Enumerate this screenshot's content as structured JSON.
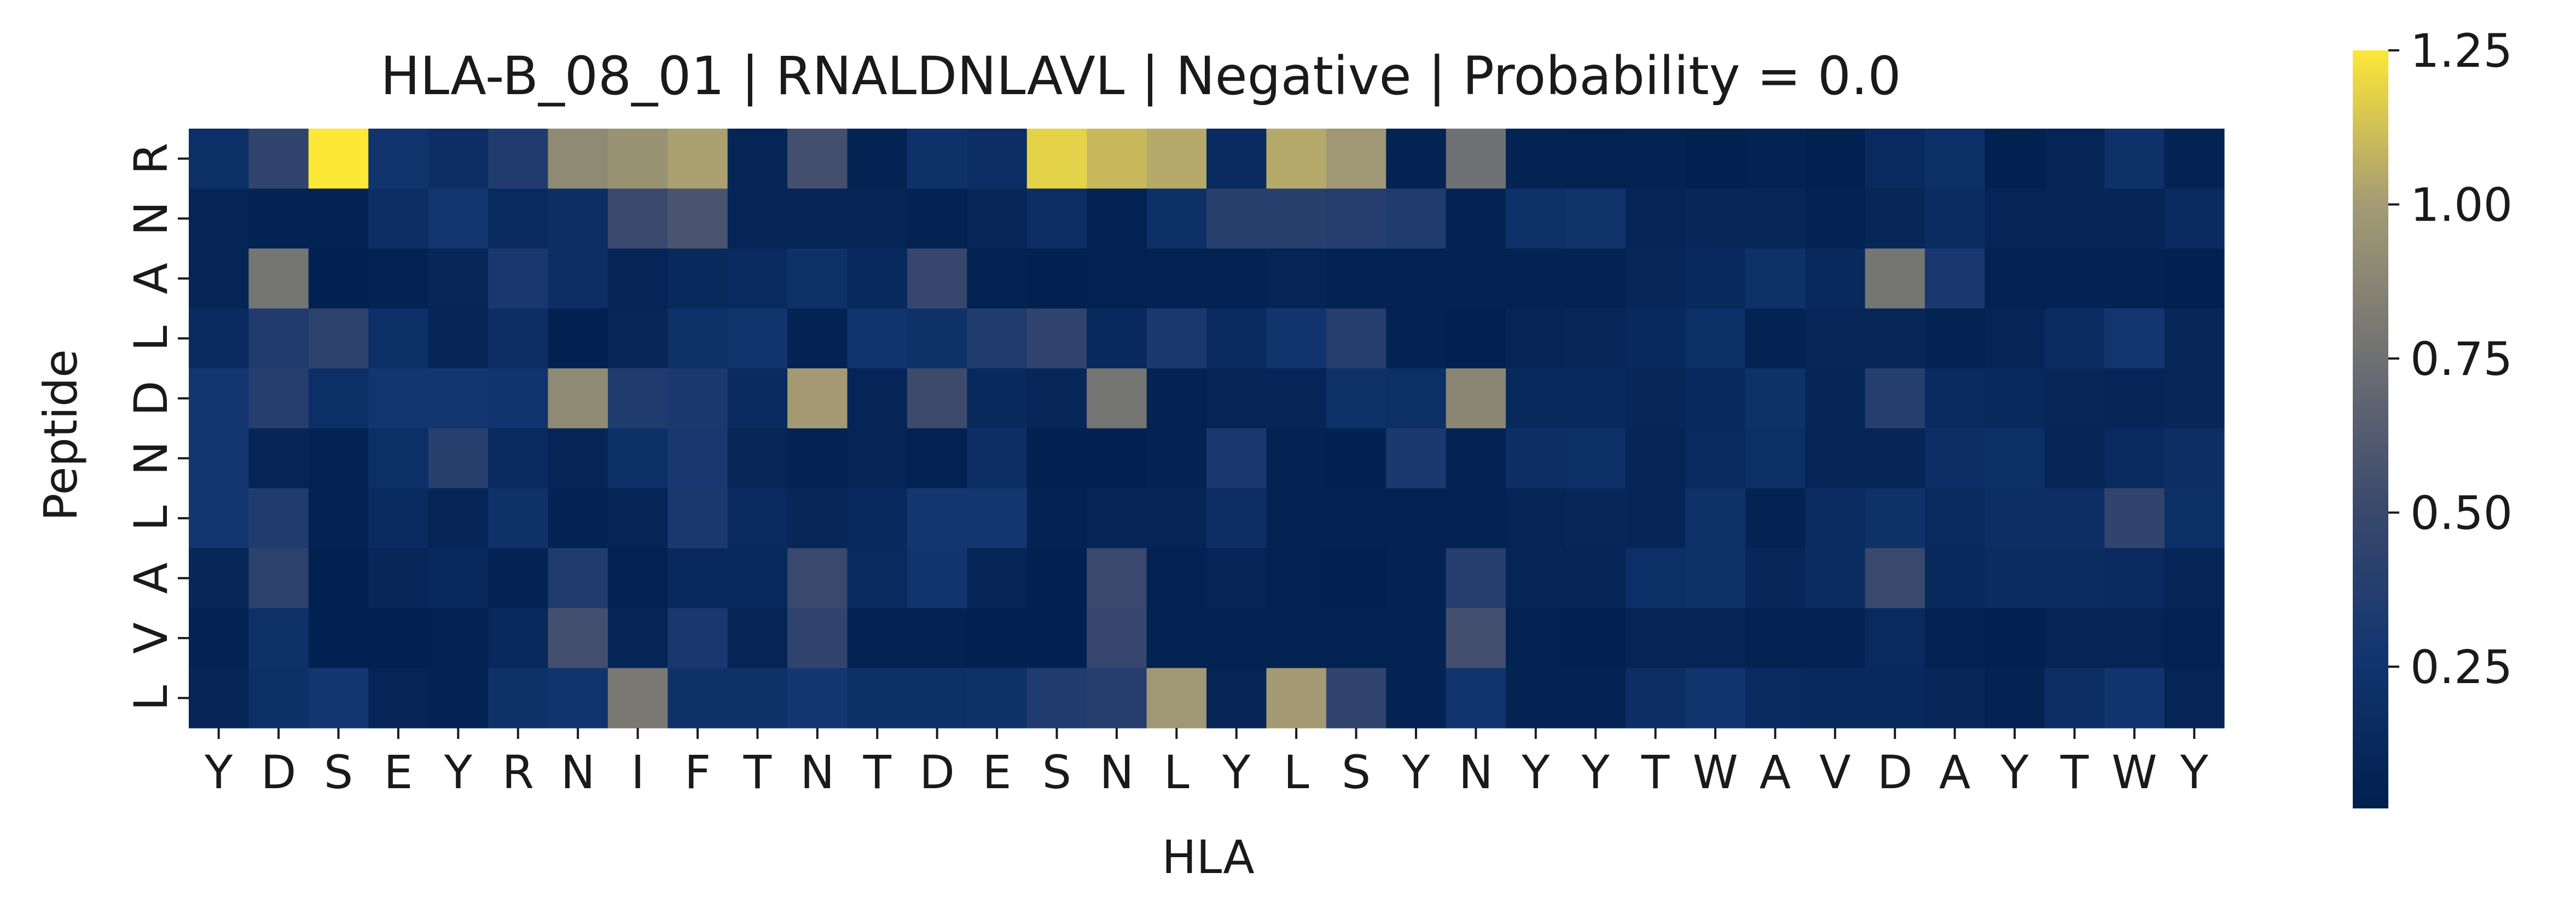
{
  "chart_data": {
    "type": "heatmap",
    "title": "HLA-B_08_01 | RNALDNLAVL | Negative | Probability = 0.0",
    "xlabel": "HLA",
    "ylabel": "Peptide",
    "x_labels": [
      "Y",
      "D",
      "S",
      "E",
      "Y",
      "R",
      "N",
      "I",
      "F",
      "T",
      "N",
      "T",
      "D",
      "E",
      "S",
      "N",
      "L",
      "Y",
      "L",
      "S",
      "Y",
      "N",
      "Y",
      "Y",
      "T",
      "W",
      "A",
      "V",
      "D",
      "A",
      "Y",
      "T",
      "W",
      "Y"
    ],
    "y_labels": [
      "R",
      "N",
      "A",
      "L",
      "D",
      "N",
      "L",
      "A",
      "V",
      "L"
    ],
    "values": [
      [
        0.2,
        0.45,
        1.25,
        0.25,
        0.18,
        0.35,
        0.9,
        0.95,
        1.02,
        0.08,
        0.55,
        0.06,
        0.22,
        0.18,
        1.18,
        1.1,
        1.05,
        0.15,
        1.05,
        0.98,
        0.06,
        0.75,
        0.06,
        0.05,
        0.06,
        0.04,
        0.06,
        0.04,
        0.14,
        0.2,
        0.04,
        0.08,
        0.22,
        0.06
      ],
      [
        0.08,
        0.06,
        0.06,
        0.18,
        0.28,
        0.14,
        0.18,
        0.5,
        0.58,
        0.08,
        0.08,
        0.08,
        0.06,
        0.1,
        0.18,
        0.05,
        0.2,
        0.4,
        0.4,
        0.38,
        0.35,
        0.06,
        0.22,
        0.24,
        0.08,
        0.1,
        0.1,
        0.06,
        0.1,
        0.16,
        0.08,
        0.08,
        0.08,
        0.15
      ],
      [
        0.08,
        0.78,
        0.04,
        0.06,
        0.1,
        0.3,
        0.18,
        0.08,
        0.12,
        0.14,
        0.22,
        0.12,
        0.48,
        0.05,
        0.04,
        0.05,
        0.05,
        0.06,
        0.08,
        0.06,
        0.06,
        0.06,
        0.06,
        0.06,
        0.1,
        0.12,
        0.22,
        0.12,
        0.78,
        0.3,
        0.06,
        0.06,
        0.06,
        0.04
      ],
      [
        0.15,
        0.35,
        0.42,
        0.2,
        0.08,
        0.18,
        0.04,
        0.1,
        0.22,
        0.25,
        0.06,
        0.25,
        0.22,
        0.35,
        0.45,
        0.12,
        0.32,
        0.14,
        0.25,
        0.38,
        0.06,
        0.04,
        0.08,
        0.1,
        0.12,
        0.2,
        0.06,
        0.1,
        0.1,
        0.06,
        0.08,
        0.16,
        0.28,
        0.1
      ],
      [
        0.28,
        0.38,
        0.2,
        0.28,
        0.28,
        0.25,
        0.9,
        0.35,
        0.32,
        0.15,
        1.0,
        0.08,
        0.52,
        0.12,
        0.1,
        0.78,
        0.06,
        0.08,
        0.08,
        0.22,
        0.2,
        0.88,
        0.12,
        0.12,
        0.1,
        0.12,
        0.22,
        0.08,
        0.38,
        0.14,
        0.12,
        0.1,
        0.08,
        0.1
      ],
      [
        0.28,
        0.08,
        0.05,
        0.2,
        0.4,
        0.14,
        0.08,
        0.2,
        0.3,
        0.1,
        0.06,
        0.08,
        0.05,
        0.18,
        0.04,
        0.04,
        0.06,
        0.3,
        0.06,
        0.04,
        0.32,
        0.05,
        0.18,
        0.2,
        0.08,
        0.14,
        0.2,
        0.08,
        0.08,
        0.18,
        0.2,
        0.08,
        0.14,
        0.18
      ],
      [
        0.28,
        0.35,
        0.06,
        0.15,
        0.08,
        0.22,
        0.06,
        0.08,
        0.32,
        0.14,
        0.1,
        0.12,
        0.28,
        0.28,
        0.06,
        0.08,
        0.08,
        0.18,
        0.06,
        0.05,
        0.06,
        0.05,
        0.08,
        0.1,
        0.08,
        0.22,
        0.06,
        0.16,
        0.22,
        0.14,
        0.18,
        0.18,
        0.45,
        0.2
      ],
      [
        0.1,
        0.42,
        0.04,
        0.1,
        0.12,
        0.06,
        0.35,
        0.05,
        0.12,
        0.12,
        0.5,
        0.14,
        0.25,
        0.08,
        0.04,
        0.5,
        0.05,
        0.08,
        0.05,
        0.04,
        0.06,
        0.38,
        0.08,
        0.08,
        0.2,
        0.22,
        0.1,
        0.16,
        0.5,
        0.12,
        0.16,
        0.16,
        0.14,
        0.08
      ],
      [
        0.06,
        0.22,
        0.04,
        0.04,
        0.05,
        0.12,
        0.55,
        0.08,
        0.3,
        0.08,
        0.45,
        0.06,
        0.06,
        0.04,
        0.04,
        0.48,
        0.05,
        0.05,
        0.05,
        0.05,
        0.06,
        0.55,
        0.05,
        0.04,
        0.08,
        0.08,
        0.06,
        0.06,
        0.14,
        0.05,
        0.04,
        0.08,
        0.08,
        0.05
      ],
      [
        0.08,
        0.2,
        0.28,
        0.08,
        0.06,
        0.22,
        0.25,
        0.8,
        0.22,
        0.22,
        0.28,
        0.2,
        0.2,
        0.22,
        0.35,
        0.38,
        0.98,
        0.08,
        1.0,
        0.45,
        0.06,
        0.25,
        0.06,
        0.06,
        0.18,
        0.25,
        0.14,
        0.12,
        0.12,
        0.1,
        0.06,
        0.18,
        0.25,
        0.08
      ]
    ],
    "vmin": 0.02,
    "vmax": 1.25,
    "colormap": "cividis",
    "colorbar_ticks": [
      0.25,
      0.5,
      0.75,
      1.0,
      1.25
    ],
    "colorbar_tick_labels": [
      "0.25",
      "0.50",
      "0.75",
      "1.00",
      "1.25"
    ]
  }
}
